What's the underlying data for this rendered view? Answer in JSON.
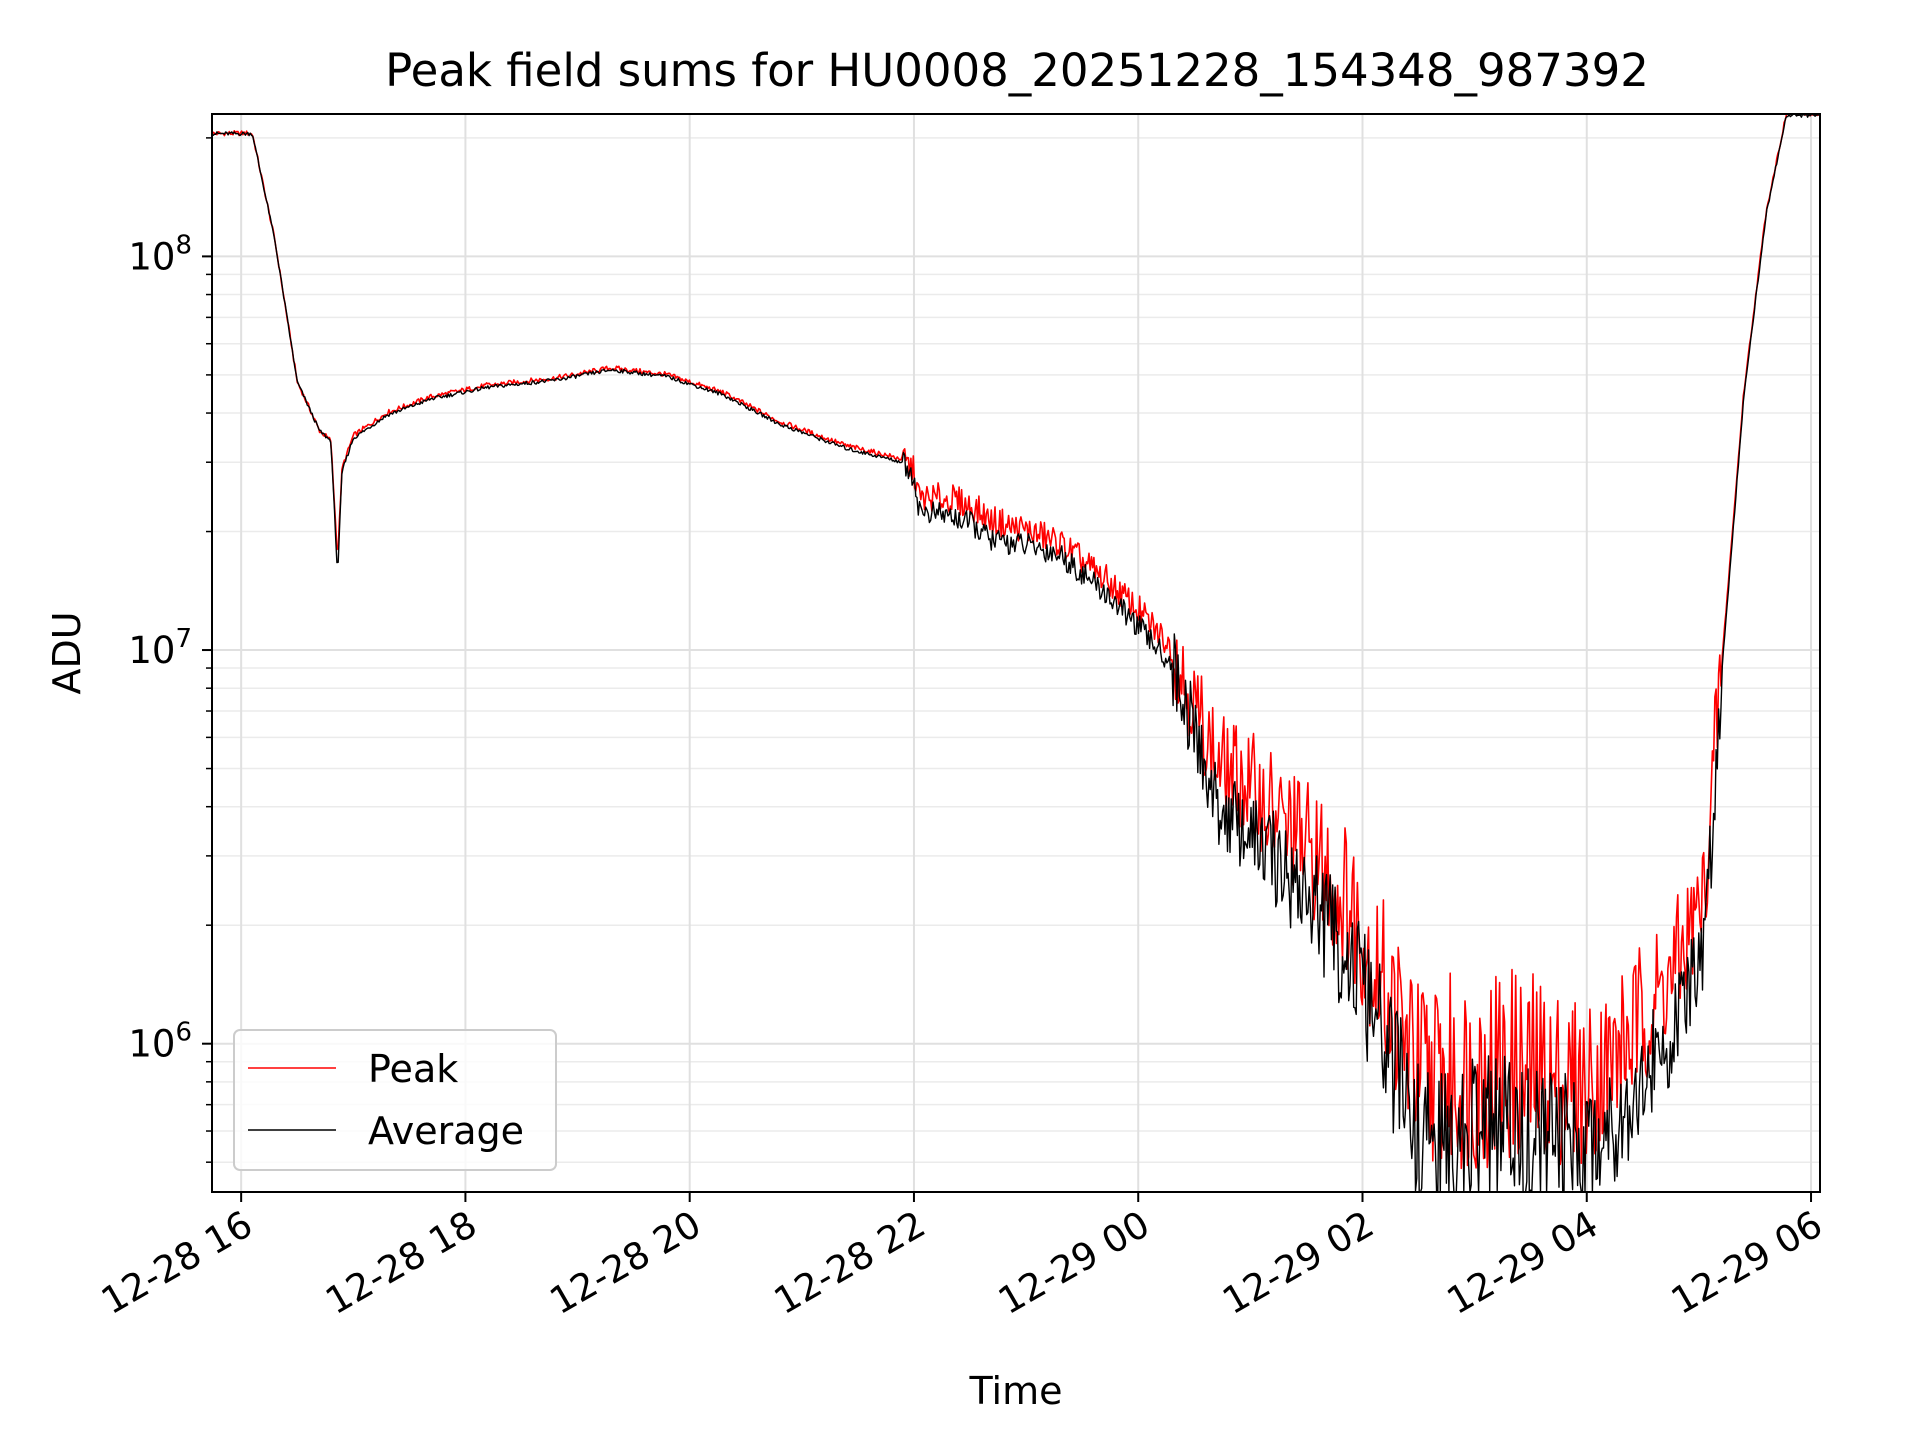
{
  "chart_data": {
    "type": "line",
    "title": "Peak field sums for HU0008_20251228_154348_987392",
    "xlabel": "Time",
    "ylabel": "ADU",
    "yscale": "log",
    "grid": true,
    "xlim_hours": [
      15.74,
      30.08
    ],
    "ylim": [
      420000,
      230000000
    ],
    "x_ticks": [
      {
        "hours": 16,
        "label": "12-28 16"
      },
      {
        "hours": 18,
        "label": "12-28 18"
      },
      {
        "hours": 20,
        "label": "12-28 20"
      },
      {
        "hours": 22,
        "label": "12-28 22"
      },
      {
        "hours": 24,
        "label": "12-29 00"
      },
      {
        "hours": 26,
        "label": "12-29 02"
      },
      {
        "hours": 28,
        "label": "12-29 04"
      },
      {
        "hours": 30,
        "label": "12-29 06"
      }
    ],
    "y_ticks": [
      {
        "value": 1000000,
        "base": "10",
        "exp": "6"
      },
      {
        "value": 10000000,
        "base": "10",
        "exp": "7"
      },
      {
        "value": 100000000,
        "base": "10",
        "exp": "8"
      }
    ],
    "x_hours": [
      15.74,
      16.1,
      16.3,
      16.5,
      16.7,
      16.8,
      16.86,
      16.9,
      17.0,
      17.3,
      17.7,
      18.2,
      18.8,
      19.3,
      19.8,
      20.3,
      20.8,
      21.4,
      21.9,
      22.0,
      22.05,
      22.3,
      22.5,
      22.7,
      23.0,
      23.3,
      23.7,
      24.0,
      24.3,
      24.5,
      24.7,
      25.0,
      25.5,
      25.9,
      26.2,
      26.5,
      26.8,
      27.2,
      27.6,
      28.0,
      28.4,
      28.8,
      29.05,
      29.2,
      29.4,
      29.6,
      29.78,
      30.08
    ],
    "series": [
      {
        "name": "Peak",
        "color": "#ff0000",
        "values": [
          205000000,
          205000000,
          110000000,
          48000000,
          36000000,
          34000000,
          17000000,
          29000000,
          35000000,
          40000000,
          44000000,
          47000000,
          49000000,
          52000000,
          50000000,
          45000000,
          38000000,
          33000000,
          30500000,
          28000000,
          24000000,
          24000000,
          23000000,
          21000000,
          20000000,
          18500000,
          15000000,
          12500000,
          10000000,
          7000000,
          5000000,
          4300000,
          3000000,
          2100000,
          1300000,
          800000,
          760000,
          800000,
          780000,
          720000,
          1000000,
          1500000,
          2300000,
          9000000,
          45000000,
          130000000,
          230000000,
          230000000
        ]
      },
      {
        "name": "Average",
        "color": "#000000",
        "values": [
          205000000,
          205000000,
          110000000,
          48000000,
          36000000,
          34000000,
          15500000,
          28500000,
          34500000,
          39500000,
          43500000,
          46500000,
          48500000,
          51500000,
          49500000,
          44500000,
          37500000,
          32500000,
          30000000,
          27500000,
          22500000,
          22000000,
          21000000,
          19000000,
          18500000,
          17500000,
          14000000,
          11500000,
          9200000,
          6200000,
          4000000,
          3400000,
          2400000,
          1600000,
          1000000,
          580000,
          540000,
          600000,
          570000,
          540000,
          720000,
          1100000,
          1700000,
          8500000,
          44000000,
          128000000,
          228000000,
          228000000
        ]
      }
    ],
    "legend": {
      "position": "lower-left",
      "entries": [
        "Peak",
        "Average"
      ]
    }
  }
}
